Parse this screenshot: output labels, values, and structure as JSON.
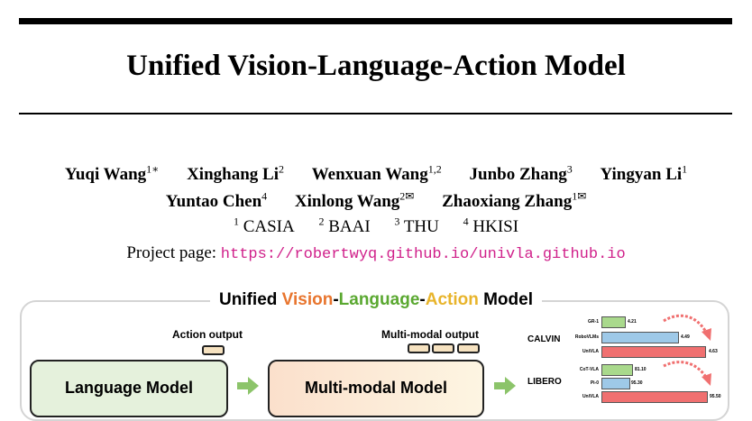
{
  "paper": {
    "title": "Unified Vision-Language-Action Model",
    "authors_line1": [
      {
        "name": "Yuqi Wang",
        "sup": "1∗"
      },
      {
        "name": "Xinghang Li",
        "sup": "2"
      },
      {
        "name": "Wenxuan Wang",
        "sup": "1,2"
      },
      {
        "name": "Junbo Zhang",
        "sup": "3"
      },
      {
        "name": "Yingyan Li",
        "sup": "1"
      }
    ],
    "authors_line2": [
      {
        "name": "Yuntao Chen",
        "sup": "4"
      },
      {
        "name": "Xinlong Wang",
        "sup": "2✉"
      },
      {
        "name": "Zhaoxiang Zhang",
        "sup": "1✉"
      }
    ],
    "affiliations": [
      {
        "sup": "1",
        "name": "CASIA"
      },
      {
        "sup": "2",
        "name": "BAAI"
      },
      {
        "sup": "3",
        "name": "THU"
      },
      {
        "sup": "4",
        "name": "HKISI"
      }
    ],
    "project_label": "Project page:",
    "project_url": "https://robertwyq.github.io/univla.github.io"
  },
  "figure": {
    "title_parts": {
      "prefix": "Unified ",
      "vision": "Vision",
      "dash1": "-",
      "language": "Language",
      "dash2": "-",
      "action": "Action",
      "suffix": " Model"
    },
    "colors": {
      "vision": "#e8752e",
      "language": "#5aa830",
      "action": "#e8b42b"
    },
    "action_output_label": "Action output",
    "multimodal_output_label": "Multi-modal output",
    "language_model_label": "Language Model",
    "multimodal_model_label": "Multi-modal Model",
    "arrow_icon": "right-arrow-icon",
    "benchmarks": {
      "calvin": {
        "name": "CALVIN",
        "rows": [
          {
            "label": "GR-1",
            "value": "4.21",
            "color": "#a9d98c"
          },
          {
            "label": "RoboVLMs",
            "value": "4.49",
            "color": "#9ec9e8"
          },
          {
            "label": "UniVLA",
            "value": "4.63",
            "color": "#f07070"
          }
        ]
      },
      "libero": {
        "name": "LIBERO",
        "rows": [
          {
            "label": "CoT-VLA",
            "value": "81.10",
            "color": "#a9d98c"
          },
          {
            "label": "Pi-0",
            "value": "95.30",
            "color": "#9ec9e8"
          },
          {
            "label": "UniVLA",
            "value": "95.50",
            "color": "#f07070"
          }
        ]
      }
    }
  }
}
